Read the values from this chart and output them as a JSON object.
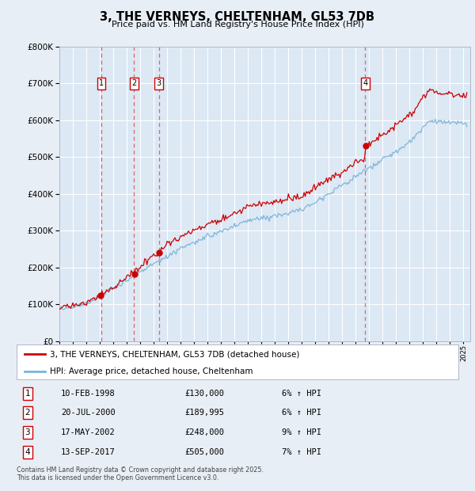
{
  "title": "3, THE VERNEYS, CHELTENHAM, GL53 7DB",
  "subtitle": "Price paid vs. HM Land Registry's House Price Index (HPI)",
  "bg_color": "#e8eef5",
  "plot_bg_color": "#dce8f4",
  "grid_color": "#ffffff",
  "hpi_line_color": "#7ab4d8",
  "price_line_color": "#cc0000",
  "marker_box_color": "#cc0000",
  "dashed_line_color": "#dd6666",
  "ylim": [
    0,
    800000
  ],
  "yticks": [
    0,
    100000,
    200000,
    300000,
    400000,
    500000,
    600000,
    700000,
    800000
  ],
  "xlim_start": 1995.0,
  "xlim_end": 2025.5,
  "transactions": [
    {
      "num": 1,
      "date": "10-FEB-1998",
      "year": 1998.11,
      "price": 130000,
      "pct": "6%",
      "dir": "↑"
    },
    {
      "num": 2,
      "date": "20-JUL-2000",
      "year": 2000.55,
      "price": 189995,
      "pct": "6%",
      "dir": "↑"
    },
    {
      "num": 3,
      "date": "17-MAY-2002",
      "year": 2002.38,
      "price": 248000,
      "pct": "9%",
      "dir": "↑"
    },
    {
      "num": 4,
      "date": "13-SEP-2017",
      "year": 2017.71,
      "price": 505000,
      "pct": "7%",
      "dir": "↑"
    }
  ],
  "legend_label_price": "3, THE VERNEYS, CHELTENHAM, GL53 7DB (detached house)",
  "legend_label_hpi": "HPI: Average price, detached house, Cheltenham",
  "footnote": "Contains HM Land Registry data © Crown copyright and database right 2025.\nThis data is licensed under the Open Government Licence v3.0.",
  "marker_y": 700000,
  "noise_scale_hpi": 3500,
  "noise_scale_price": 4500,
  "hpi_seed": 12,
  "price_seed": 77
}
